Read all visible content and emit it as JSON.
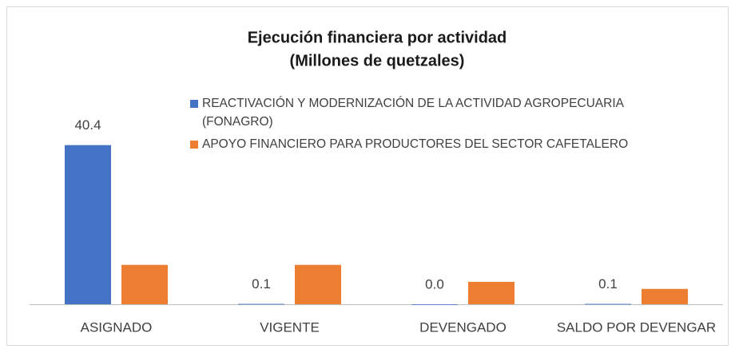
{
  "chart_data": {
    "type": "bar",
    "title": "Ejecución financiera por actividad",
    "subtitle": "(Millones de quetzales)",
    "categories": [
      "ASIGNADO",
      "VIGENTE",
      "DEVENGADO",
      "SALDO POR DEVENGAR"
    ],
    "series": [
      {
        "name": "REACTIVACIÓN Y MODERNIZACIÓN DE LA ACTIVIDAD AGROPECUARIA (FONAGRO)",
        "color": "#4472c4",
        "values": [
          40.4,
          0.1,
          0.0,
          0.1
        ],
        "value_labels": [
          "40.4",
          "0.1",
          "0.0",
          "0.1"
        ]
      },
      {
        "name": "APOYO FINANCIERO PARA PRODUCTORES DEL SECTOR CAFETALERO",
        "color": "#ed7d31",
        "values": [
          10.0,
          10.0,
          5.7,
          3.9
        ]
      }
    ],
    "ylim": [
      0,
      45
    ],
    "legend": "top"
  }
}
